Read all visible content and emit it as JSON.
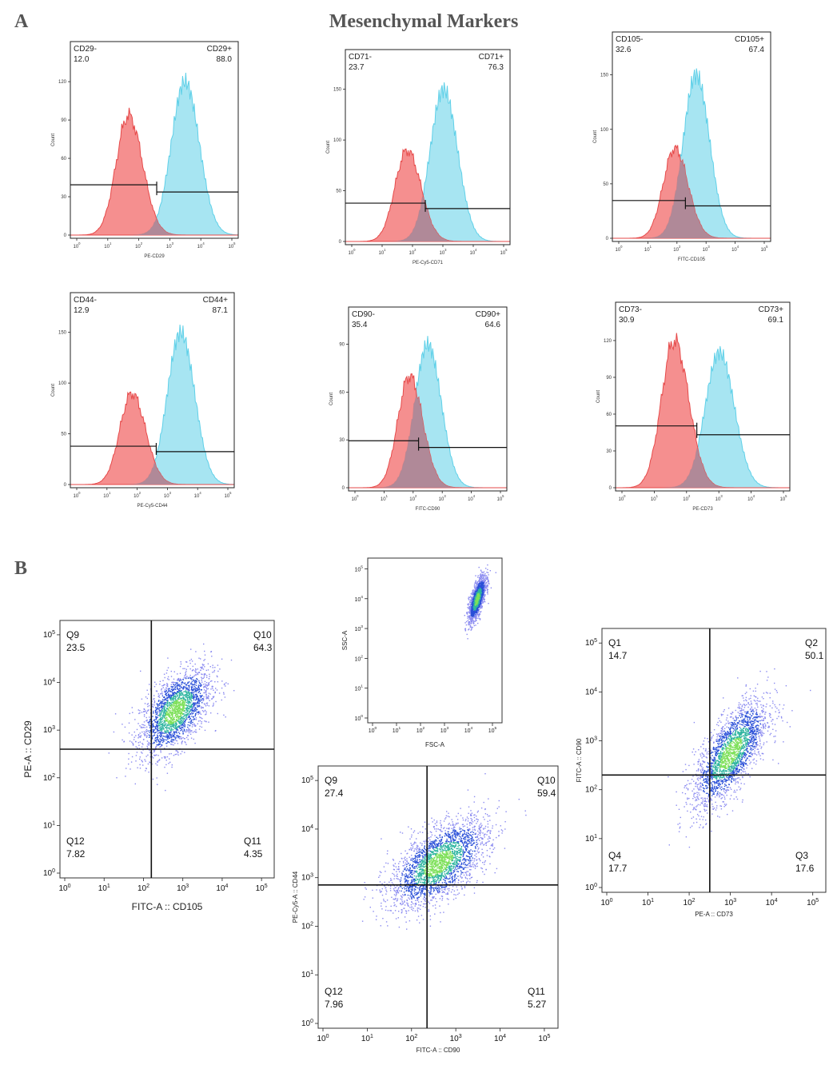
{
  "figure": {
    "panel_a_letter": "A",
    "panel_b_letter": "B",
    "title": "Mesenchymal Markers",
    "colors": {
      "negative": "#f26a6a",
      "positive": "#5fd0e8",
      "overlap": "#a88a9a"
    }
  },
  "chart_data": [
    {
      "type": "area",
      "id": "h-cd29",
      "xlabel": "PE-CD29",
      "ylabel": "Count",
      "yticks": [
        "0",
        "30",
        "60",
        "90",
        "120"
      ],
      "xticks": [
        "10^0",
        "10^1",
        "10^2",
        "10^3",
        "10^4",
        "10^5"
      ],
      "neg_label": "CD29-",
      "neg_value": "12.0",
      "pos_label": "CD29+",
      "pos_value": "88.0",
      "neg_peak_log": 1.8,
      "neg_height": 0.78,
      "pos_peak_log": 3.55,
      "pos_height": 1.0
    },
    {
      "type": "area",
      "id": "h-cd71",
      "xlabel": "PE-Cy5-CD71",
      "ylabel": "Count",
      "yticks": [
        "0",
        "50",
        "100",
        "150"
      ],
      "xticks": [
        "10^0",
        "10^1",
        "10^2",
        "10^3",
        "10^4",
        "10^5"
      ],
      "neg_label": "CD71-",
      "neg_value": "23.7",
      "pos_label": "CD71+",
      "pos_value": "76.3",
      "neg_peak_log": 1.95,
      "neg_height": 0.6,
      "pos_peak_log": 3.1,
      "pos_height": 1.0
    },
    {
      "type": "area",
      "id": "h-cd105",
      "xlabel": "FITC-CD105",
      "ylabel": "Count",
      "yticks": [
        "0",
        "50",
        "100",
        "150"
      ],
      "xticks": [
        "10^0",
        "10^1",
        "10^2",
        "10^3",
        "10^4",
        "10^5"
      ],
      "neg_label": "CD105-",
      "neg_value": "32.6",
      "pos_label": "CD105+",
      "pos_value": "67.4",
      "neg_peak_log": 2.05,
      "neg_height": 0.55,
      "pos_peak_log": 2.75,
      "pos_height": 1.0
    },
    {
      "type": "area",
      "id": "h-cd44",
      "xlabel": "PE-Cy5-CD44",
      "ylabel": "Count",
      "yticks": [
        "0",
        "50",
        "100",
        "150"
      ],
      "xticks": [
        "10^0",
        "10^1",
        "10^2",
        "10^3",
        "10^4",
        "10^5"
      ],
      "neg_label": "CD44-",
      "neg_value": "12.9",
      "pos_label": "CD44+",
      "pos_value": "87.1",
      "neg_peak_log": 1.95,
      "neg_height": 0.6,
      "pos_peak_log": 3.5,
      "pos_height": 1.0
    },
    {
      "type": "area",
      "id": "h-cd90",
      "xlabel": "FITC-CD90",
      "ylabel": "Count",
      "yticks": [
        "0",
        "30",
        "60",
        "90"
      ],
      "xticks": [
        "10^0",
        "10^1",
        "10^2",
        "10^3",
        "10^4",
        "10^5"
      ],
      "neg_label": "CD90-",
      "neg_value": "35.4",
      "pos_label": "CD90+",
      "pos_value": "64.6",
      "neg_peak_log": 2.0,
      "neg_height": 0.78,
      "pos_peak_log": 2.6,
      "pos_height": 1.0
    },
    {
      "type": "area",
      "id": "h-cd73",
      "xlabel": "PE-CD73",
      "ylabel": "Count",
      "yticks": [
        "0",
        "30",
        "60",
        "90",
        "120"
      ],
      "xticks": [
        "10^0",
        "10^1",
        "10^2",
        "10^3",
        "10^4",
        "10^5"
      ],
      "neg_label": "CD73-",
      "neg_value": "30.9",
      "pos_label": "CD73+",
      "pos_value": "69.1",
      "neg_peak_log": 1.75,
      "neg_height": 1.0,
      "pos_peak_log": 3.1,
      "pos_height": 0.92
    },
    {
      "type": "scatter",
      "id": "s-cd105-cd29",
      "xlabel": "FITC-A :: CD105",
      "ylabel": "PE-A :: CD29",
      "xticks": [
        "10^0",
        "10^1",
        "10^2",
        "10^3",
        "10^4",
        "10^5"
      ],
      "yticks": [
        "10^0",
        "10^1",
        "10^2",
        "10^3",
        "10^4",
        "10^5"
      ],
      "quadrants": [
        {
          "name": "Q9",
          "value": "23.5"
        },
        {
          "name": "Q10",
          "value": "64.3"
        },
        {
          "name": "Q12",
          "value": "7.82"
        },
        {
          "name": "Q11",
          "value": "4.35"
        }
      ],
      "gate_x_log": 2.2,
      "gate_y_log": 2.6,
      "center_log": [
        2.8,
        3.4
      ]
    },
    {
      "type": "scatter",
      "id": "s-fsc-ssc",
      "xlabel": "FSC-A",
      "ylabel": "SSC-A",
      "xticks": [
        "10^0",
        "10^1",
        "10^2",
        "10^3",
        "10^4",
        "10^5"
      ],
      "yticks": [
        "10^0",
        "10^1",
        "10^2",
        "10^3",
        "10^4",
        "10^5"
      ],
      "quadrants": [],
      "center_log": [
        4.35,
        4.0
      ]
    },
    {
      "type": "scatter",
      "id": "s-cd90-cd44",
      "xlabel": "FITC-A :: CD90",
      "ylabel": "PE-Cy5-A :: CD44",
      "xticks": [
        "10^0",
        "10^1",
        "10^2",
        "10^3",
        "10^4",
        "10^5"
      ],
      "yticks": [
        "10^0",
        "10^1",
        "10^2",
        "10^3",
        "10^4",
        "10^5"
      ],
      "quadrants": [
        {
          "name": "Q9",
          "value": "27.4"
        },
        {
          "name": "Q10",
          "value": "59.4"
        },
        {
          "name": "Q12",
          "value": "7.96"
        },
        {
          "name": "Q11",
          "value": "5.27"
        }
      ],
      "gate_x_log": 2.35,
      "gate_y_log": 2.85,
      "center_log": [
        2.6,
        3.3
      ]
    },
    {
      "type": "scatter",
      "id": "s-cd73-cd90",
      "xlabel": "PE-A :: CD73",
      "ylabel": "FITC-A :: CD90",
      "xticks": [
        "10^0",
        "10^1",
        "10^2",
        "10^3",
        "10^4",
        "10^5"
      ],
      "yticks": [
        "10^0",
        "10^1",
        "10^2",
        "10^3",
        "10^4",
        "10^5"
      ],
      "quadrants": [
        {
          "name": "Q1",
          "value": "14.7"
        },
        {
          "name": "Q2",
          "value": "50.1"
        },
        {
          "name": "Q4",
          "value": "17.7"
        },
        {
          "name": "Q3",
          "value": "17.6"
        }
      ],
      "gate_x_log": 2.5,
      "gate_y_log": 2.3,
      "center_log": [
        3.0,
        2.75
      ]
    }
  ]
}
